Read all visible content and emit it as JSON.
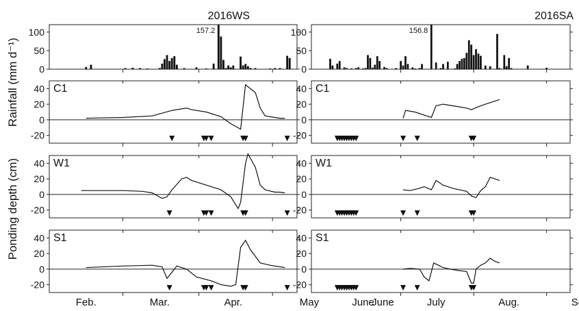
{
  "ylabels": {
    "rain": "Rainfall (mm d⁻¹)",
    "pond": "Ponding depth (cm)"
  },
  "chart_data": [
    {
      "type": "bar",
      "panel": "ws-rainfall",
      "title": "2016WS",
      "ylim": [
        0,
        120
      ],
      "yticks": [
        0,
        50,
        100
      ],
      "annotation": "157.2",
      "x": [
        45,
        47,
        61,
        64,
        67,
        70,
        75,
        76,
        77,
        78,
        79,
        80,
        81,
        82,
        85,
        90,
        94,
        97,
        99,
        100,
        101,
        102,
        103,
        104,
        105,
        108,
        109,
        110,
        111,
        112,
        114,
        120,
        122,
        124,
        127,
        128
      ],
      "values": [
        6,
        12,
        3,
        4,
        3,
        2,
        3,
        15,
        27,
        38,
        22,
        30,
        35,
        12,
        3,
        5,
        2,
        15,
        120,
        88,
        25,
        3,
        10,
        5,
        10,
        34,
        10,
        14,
        8,
        3,
        3,
        2,
        3,
        3,
        36,
        30
      ]
    },
    {
      "type": "bar",
      "panel": "sa-rainfall",
      "title": "2016SA",
      "ylim": [
        0,
        120
      ],
      "yticks": [
        0,
        50,
        100
      ],
      "annotation": "156.8",
      "x": [
        152,
        153,
        155,
        156,
        158,
        159,
        161,
        163,
        164,
        166,
        167,
        168,
        169,
        170,
        171,
        172,
        173,
        175,
        176,
        180,
        182,
        183,
        184,
        185,
        187,
        188,
        190,
        191,
        195,
        197,
        199,
        200,
        202,
        205,
        206,
        207,
        208,
        209,
        210,
        211,
        212,
        213,
        214,
        215,
        216,
        218,
        220,
        223,
        224,
        226,
        227,
        228,
        229,
        236,
        244
      ],
      "values": [
        28,
        10,
        15,
        22,
        5,
        3,
        2,
        3,
        5,
        2,
        3,
        38,
        30,
        4,
        12,
        35,
        22,
        6,
        3,
        3,
        22,
        10,
        35,
        14,
        5,
        2,
        3,
        14,
        120,
        18,
        3,
        14,
        20,
        2,
        14,
        22,
        28,
        30,
        44,
        78,
        66,
        38,
        54,
        42,
        36,
        10,
        8,
        95,
        3,
        38,
        8,
        30,
        3,
        10,
        4
      ]
    },
    {
      "type": "line",
      "panel": "ws-C1",
      "label": "C1",
      "ylim": [
        -30,
        50
      ],
      "yticks": [
        -20,
        0,
        20,
        40
      ],
      "x": [
        45,
        60,
        72,
        80,
        86,
        88,
        94,
        100,
        104,
        108,
        110,
        114,
        116,
        118,
        122,
        124,
        126
      ],
      "values": [
        2,
        3,
        5,
        12,
        15,
        13,
        10,
        4,
        -5,
        -12,
        45,
        35,
        15,
        5,
        3,
        2,
        2
      ],
      "drainage_days": [
        80,
        93,
        94,
        96,
        109,
        110,
        127
      ]
    },
    {
      "type": "line",
      "panel": "ws-W1",
      "label": "W1",
      "ylim": [
        -30,
        50
      ],
      "yticks": [
        -20,
        0,
        20,
        40
      ],
      "x": [
        43,
        52,
        60,
        68,
        72,
        76,
        78,
        80,
        84,
        86,
        88,
        94,
        100,
        104,
        107,
        108,
        110,
        111,
        114,
        116,
        118,
        122,
        124,
        126
      ],
      "values": [
        5,
        5,
        5,
        4,
        2,
        -5,
        -3,
        6,
        20,
        22,
        18,
        12,
        6,
        -3,
        -18,
        -10,
        40,
        52,
        35,
        12,
        6,
        3,
        3,
        2
      ],
      "drainage_days": [
        79,
        93,
        94,
        96,
        109,
        110,
        127
      ]
    },
    {
      "type": "line",
      "panel": "ws-S1",
      "label": "S1",
      "ylim": [
        -30,
        50
      ],
      "yticks": [
        -20,
        0,
        20,
        40
      ],
      "x": [
        45,
        60,
        72,
        76,
        78,
        82,
        86,
        90,
        96,
        100,
        104,
        106,
        108,
        110,
        112,
        116,
        120,
        124,
        126
      ],
      "values": [
        2,
        4,
        5,
        3,
        -12,
        4,
        0,
        -10,
        -15,
        -20,
        -22,
        -20,
        28,
        37,
        25,
        8,
        5,
        3,
        2
      ],
      "drainage_days": [
        79,
        93,
        94,
        96,
        109,
        110,
        127
      ]
    },
    {
      "type": "line",
      "panel": "sa-C1",
      "label": "C1",
      "ylim": [
        -30,
        50
      ],
      "yticks": [
        -20,
        0,
        20,
        40
      ],
      "x": [
        183,
        184,
        188,
        193,
        195,
        197,
        200,
        206,
        210,
        212,
        216,
        220,
        224
      ],
      "values": [
        2,
        12,
        10,
        5,
        3,
        18,
        20,
        17,
        15,
        13,
        18,
        22,
        26
      ],
      "drainage_days": [
        155,
        156,
        157,
        158,
        159,
        160,
        161,
        162,
        163,
        183,
        189,
        212,
        213
      ]
    },
    {
      "type": "line",
      "panel": "sa-W1",
      "label": "W1",
      "ylim": [
        -30,
        50
      ],
      "yticks": [
        -20,
        0,
        20,
        40
      ],
      "x": [
        183,
        186,
        190,
        192,
        195,
        197,
        200,
        204,
        207,
        210,
        212,
        214,
        216,
        218,
        220,
        222,
        224
      ],
      "values": [
        6,
        5,
        8,
        10,
        6,
        18,
        12,
        8,
        6,
        4,
        -2,
        -4,
        5,
        10,
        22,
        20,
        18
      ],
      "drainage_days": [
        155,
        156,
        157,
        158,
        159,
        160,
        161,
        162,
        163,
        183,
        189,
        212,
        213
      ]
    },
    {
      "type": "line",
      "panel": "sa-S1",
      "label": "S1",
      "ylim": [
        -30,
        50
      ],
      "yticks": [
        -20,
        0,
        20,
        40
      ],
      "x": [
        183,
        186,
        190,
        192,
        194,
        196,
        198,
        200,
        203,
        207,
        210,
        212,
        213,
        214,
        216,
        218,
        220,
        222,
        224
      ],
      "values": [
        0,
        1,
        0,
        -10,
        -15,
        8,
        5,
        2,
        0,
        -2,
        -3,
        -18,
        -18,
        0,
        5,
        8,
        14,
        10,
        8
      ],
      "drainage_days": [
        155,
        156,
        157,
        158,
        159,
        160,
        161,
        162,
        163,
        183,
        189,
        212,
        213
      ]
    }
  ],
  "months_ws": [
    "Feb.",
    "Mar.",
    "Apr.",
    "May",
    "June"
  ],
  "months_sa": [
    "June",
    "July",
    "Aug.",
    "Sep."
  ]
}
